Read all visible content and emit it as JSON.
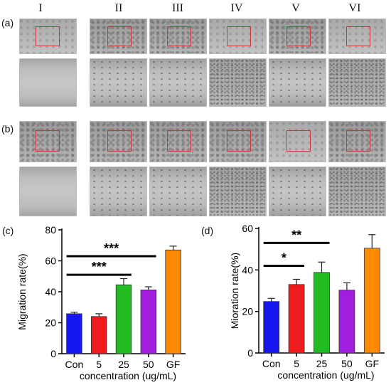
{
  "columns": [
    "I",
    "II",
    "III",
    "IV",
    "V",
    "VI"
  ],
  "row_labels": [
    "(a)",
    "(b)"
  ],
  "chart_data": [
    {
      "type": "bar",
      "panel": "(c)",
      "categories": [
        "Con",
        "5",
        "25",
        "50",
        "GF"
      ],
      "values": [
        25.8,
        24.0,
        44.5,
        41.2,
        67.0
      ],
      "errors": [
        1.0,
        1.8,
        4.0,
        2.0,
        2.5
      ],
      "colors": [
        "#1717f0",
        "#ee1c1c",
        "#22bb22",
        "#a01fde",
        "#ff8a00"
      ],
      "xlabel": "concentration (ug/mL)",
      "ylabel": "Migration rate(%)",
      "ylim": [
        0,
        80
      ],
      "yticks": [
        "0",
        "20",
        "40",
        "60",
        "80"
      ],
      "annotations": [
        {
          "from": "Con",
          "to": "50",
          "label": "***",
          "y": 63
        },
        {
          "from": "Con",
          "to": "25",
          "label": "***",
          "y": 51
        }
      ]
    },
    {
      "type": "bar",
      "panel": "(d)",
      "categories": [
        "Con",
        "5",
        "25",
        "50",
        "GF"
      ],
      "values": [
        24.8,
        33.0,
        38.8,
        30.3,
        50.5
      ],
      "errors": [
        1.5,
        2.5,
        5.0,
        3.5,
        6.5
      ],
      "colors": [
        "#1717f0",
        "#ee1c1c",
        "#22bb22",
        "#a01fde",
        "#ff8a00"
      ],
      "xlabel": "concentration (ug/mL)",
      "ylabel": "Mioration rate(%)",
      "ylim": [
        0,
        60
      ],
      "yticks": [
        "0",
        "20",
        "40",
        "60"
      ],
      "annotations": [
        {
          "from": "Con",
          "to": "25",
          "label": "**",
          "y": 53
        },
        {
          "from": "Con",
          "to": "5",
          "label": "*",
          "y": 42
        }
      ]
    }
  ]
}
